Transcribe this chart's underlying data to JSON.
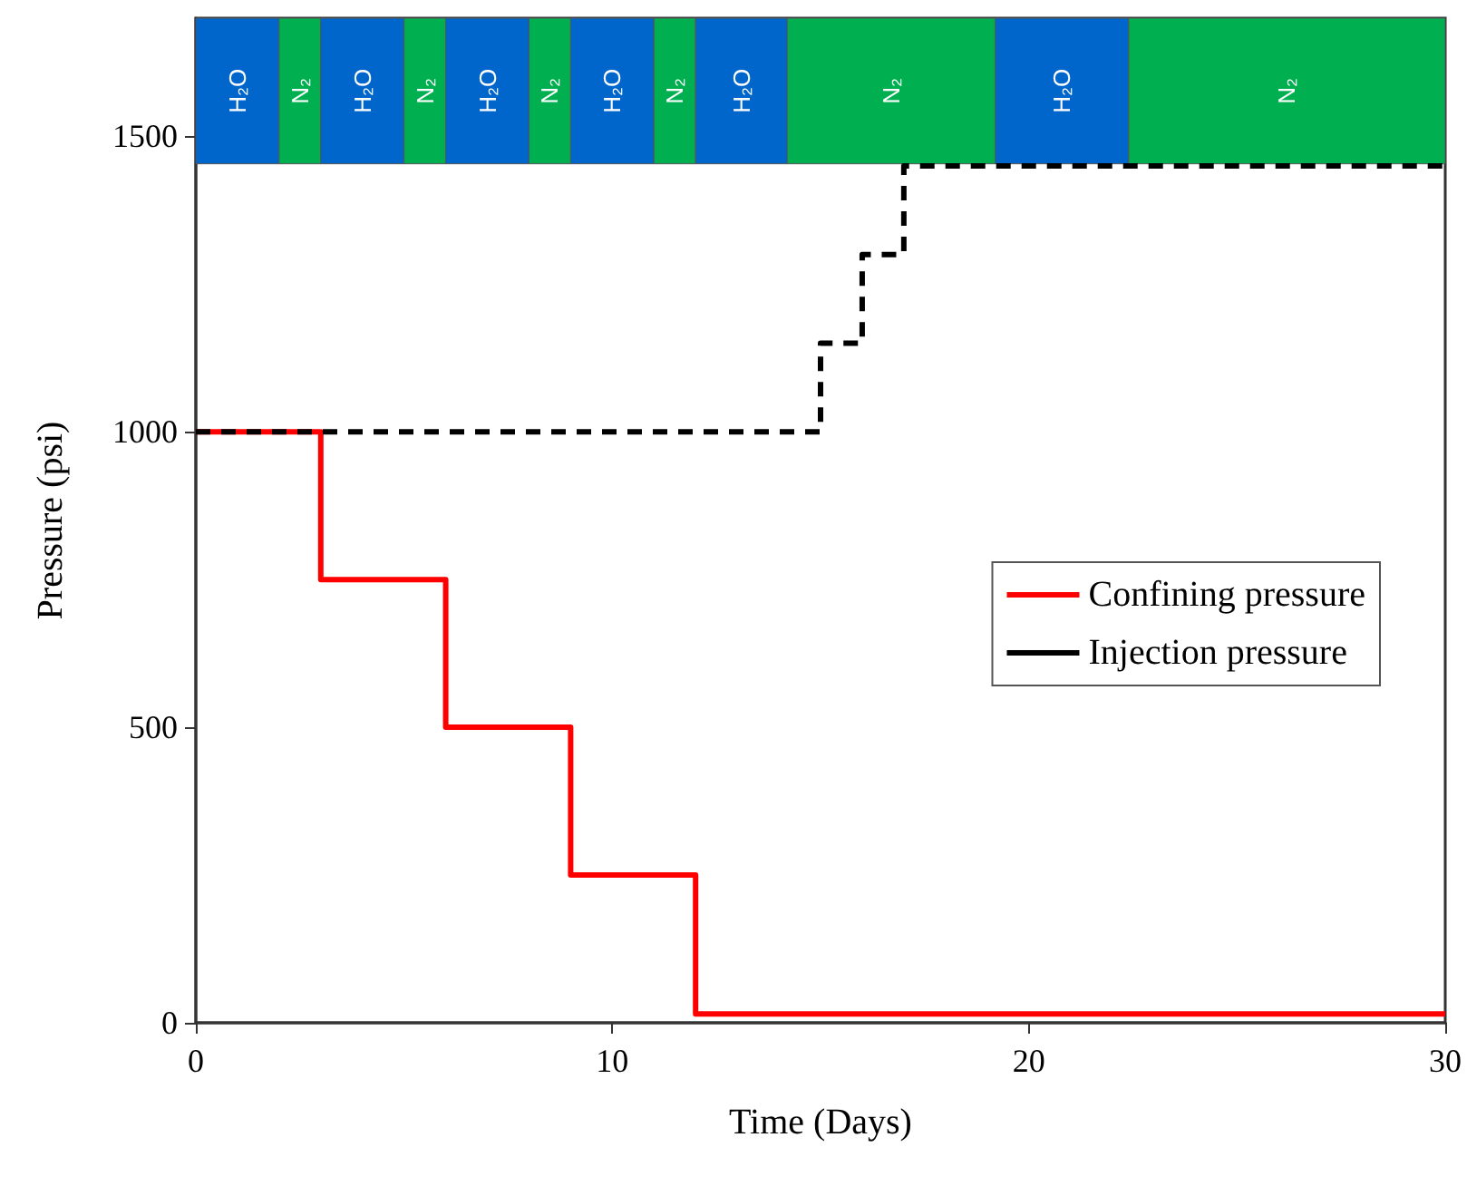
{
  "chart_data": {
    "type": "step",
    "xlabel": "Time (Days)",
    "ylabel": "Pressure (psi)",
    "xlim": [
      0,
      30
    ],
    "xticks": [
      0,
      10,
      20,
      30
    ],
    "ylim": [
      0,
      1700
    ],
    "yticks": [
      0,
      500,
      1000,
      1500
    ],
    "grid": false,
    "legend": "right",
    "marker": "none",
    "series": [
      {
        "name": "Confining pressure",
        "color": "#ff0000",
        "line_style": "solid",
        "x": [
          0,
          3,
          6,
          9,
          12,
          30
        ],
        "values": [
          1000,
          750,
          500,
          250,
          15,
          15
        ]
      },
      {
        "name": "Injection pressure",
        "color": "#000000",
        "line_style": "dashed",
        "x": [
          0,
          15,
          16,
          17,
          30
        ],
        "values": [
          1000,
          1150,
          1300,
          1450,
          1450
        ]
      }
    ],
    "bands": [
      {
        "axis": "x",
        "from": 0,
        "to": 2,
        "label": "H₂O",
        "color": "#0066cc"
      },
      {
        "axis": "x",
        "from": 2,
        "to": 3,
        "label": "N₂",
        "color": "#00b050"
      },
      {
        "axis": "x",
        "from": 3,
        "to": 5,
        "label": "H₂O",
        "color": "#0066cc"
      },
      {
        "axis": "x",
        "from": 5,
        "to": 6,
        "label": "N₂",
        "color": "#00b050"
      },
      {
        "axis": "x",
        "from": 6,
        "to": 8,
        "label": "H₂O",
        "color": "#0066cc"
      },
      {
        "axis": "x",
        "from": 8,
        "to": 9,
        "label": "N₂",
        "color": "#00b050"
      },
      {
        "axis": "x",
        "from": 9,
        "to": 11,
        "label": "H₂O",
        "color": "#0066cc"
      },
      {
        "axis": "x",
        "from": 11,
        "to": 12,
        "label": "N₂",
        "color": "#00b050"
      },
      {
        "axis": "x",
        "from": 12,
        "to": 14.2,
        "label": "H₂O",
        "color": "#0066cc"
      },
      {
        "axis": "x",
        "from": 14.2,
        "to": 19.2,
        "label": "N₂",
        "color": "#00b050"
      },
      {
        "axis": "x",
        "from": 19.2,
        "to": 22.4,
        "label": "H₂O",
        "color": "#0066cc"
      },
      {
        "axis": "x",
        "from": 22.4,
        "to": 30,
        "label": "N₂",
        "color": "#00b050"
      }
    ]
  }
}
